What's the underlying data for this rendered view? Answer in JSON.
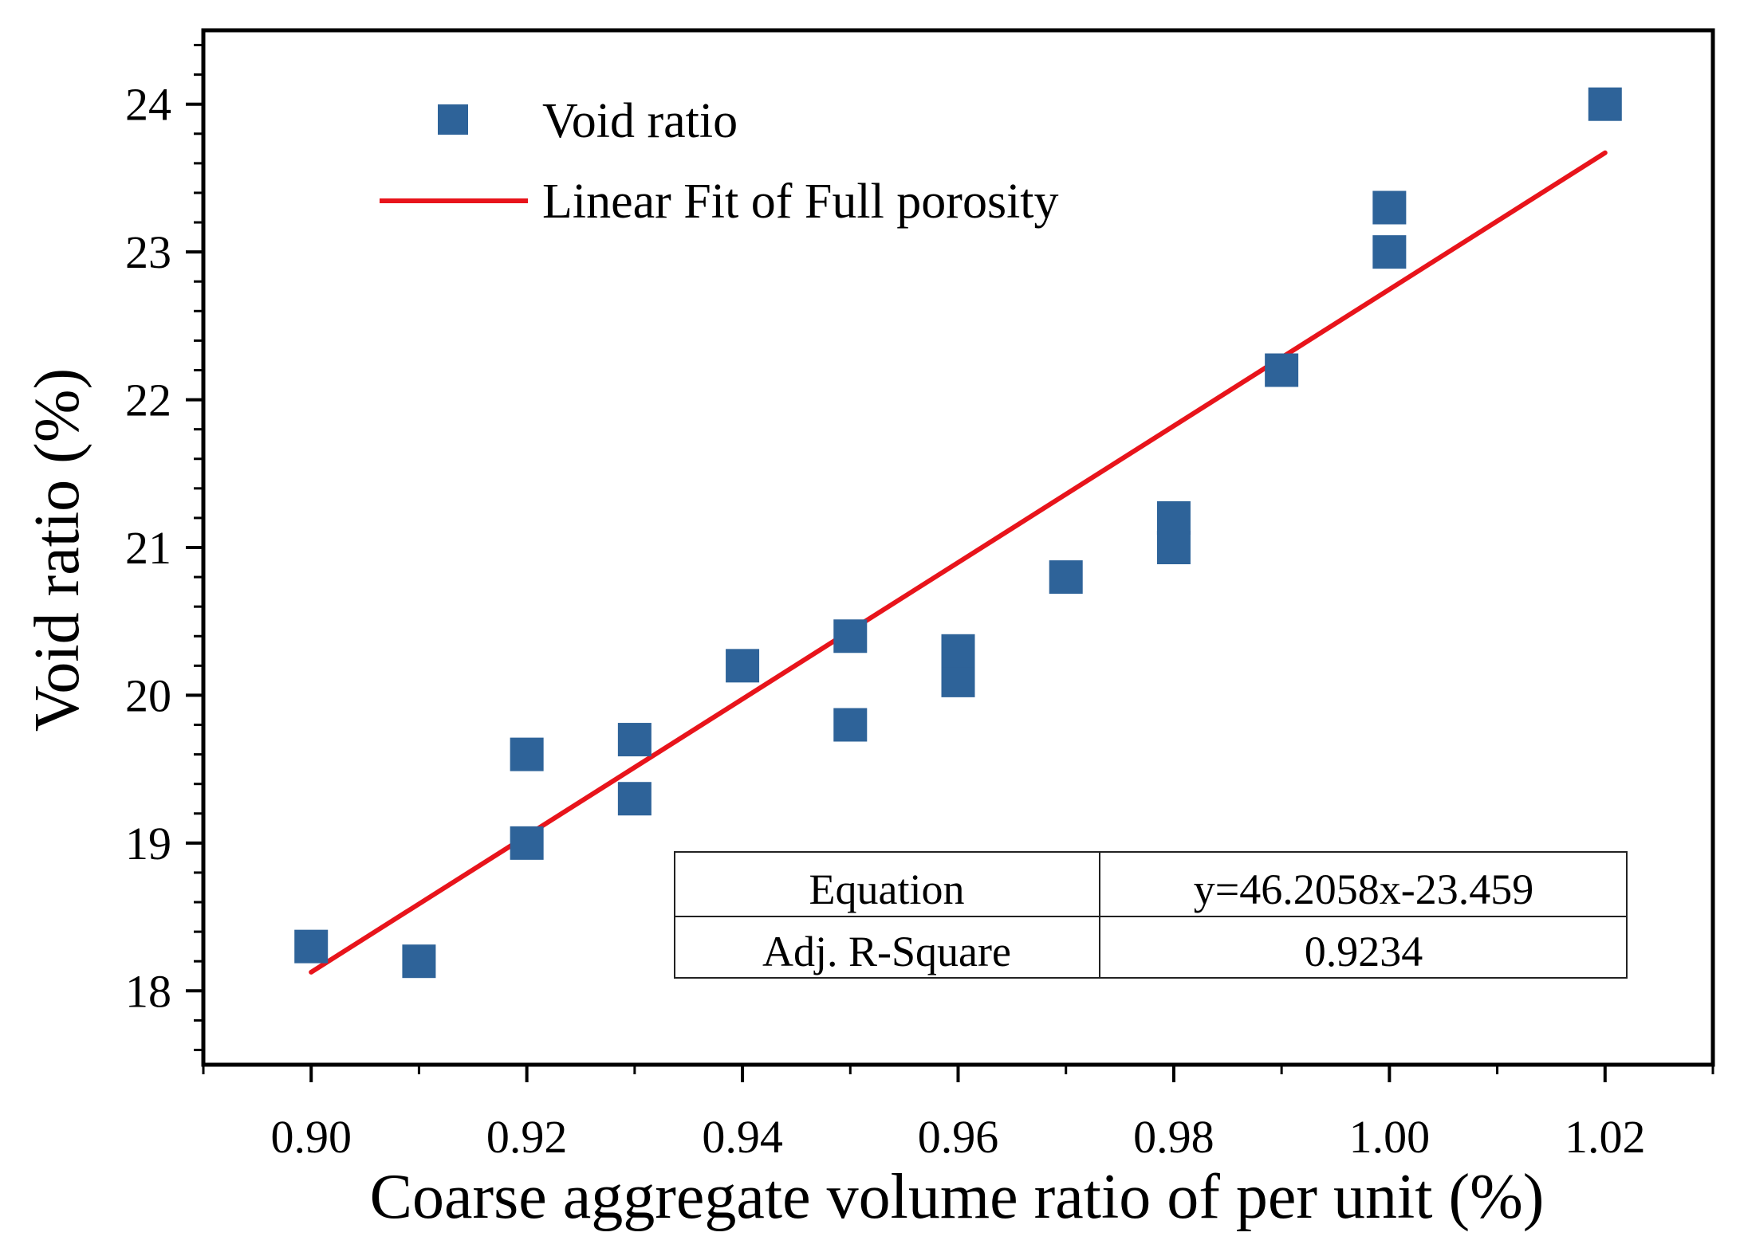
{
  "chart_data": {
    "type": "scatter",
    "title": "",
    "xlabel": "Coarse aggregate volume ratio of per unit (%)",
    "ylabel": "Void ratio (%)",
    "xlim": [
      0.89,
      1.03
    ],
    "ylim": [
      17.5,
      24.5
    ],
    "x_ticks": [
      0.9,
      0.92,
      0.94,
      0.96,
      0.98,
      1.0,
      1.02
    ],
    "x_tick_labels": [
      "0.90",
      "0.92",
      "0.94",
      "0.96",
      "0.98",
      "1.00",
      "1.02"
    ],
    "y_ticks": [
      18,
      19,
      20,
      21,
      22,
      23,
      24
    ],
    "y_tick_labels": [
      "18",
      "19",
      "20",
      "21",
      "22",
      "23",
      "24"
    ],
    "grid": false,
    "legend_position": "top-left",
    "series": [
      {
        "name": "Void ratio",
        "kind": "scatter",
        "marker": "square",
        "color": "#2e6399",
        "points": [
          [
            0.9,
            18.3
          ],
          [
            0.91,
            18.2
          ],
          [
            0.92,
            19.0
          ],
          [
            0.92,
            19.6
          ],
          [
            0.93,
            19.3
          ],
          [
            0.93,
            19.7
          ],
          [
            0.94,
            20.2
          ],
          [
            0.95,
            19.8
          ],
          [
            0.95,
            20.4
          ],
          [
            0.96,
            20.1
          ],
          [
            0.96,
            20.3
          ],
          [
            0.97,
            20.8
          ],
          [
            0.98,
            21.0
          ],
          [
            0.98,
            21.2
          ],
          [
            0.99,
            22.2
          ],
          [
            1.0,
            23.0
          ],
          [
            1.0,
            23.3
          ],
          [
            1.02,
            24.0
          ]
        ]
      },
      {
        "name": "Linear Fit of Full porosity",
        "kind": "line",
        "color": "#e8141b",
        "x_range": [
          0.9,
          1.02
        ],
        "slope": 46.2058,
        "intercept": -23.459
      }
    ],
    "stats_table": {
      "rows": [
        {
          "label": "Equation",
          "value": "y=46.2058x-23.459"
        },
        {
          "label": "Adj. R-Square",
          "value": "0.9234"
        }
      ]
    }
  }
}
